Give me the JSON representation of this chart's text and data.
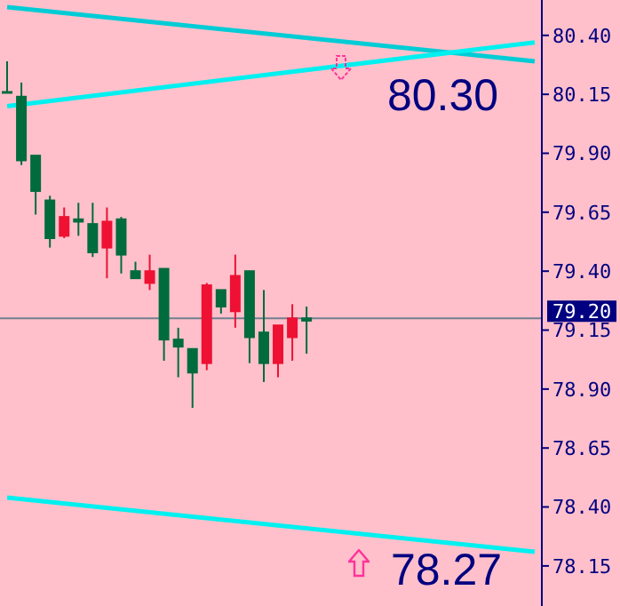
{
  "chart_data": {
    "type": "candlestick",
    "categories": [
      null,
      null,
      null,
      null,
      null,
      null,
      null,
      null,
      null,
      null,
      null,
      null,
      null,
      null,
      null,
      null,
      null,
      null,
      null,
      null,
      null,
      null,
      null,
      null,
      null,
      null,
      null,
      null,
      null,
      null,
      null,
      null,
      null,
      null,
      null,
      null,
      null,
      null
    ],
    "ohlc": [
      [
        80.16,
        80.29,
        80.16,
        80.16
      ],
      [
        80.14,
        80.2,
        79.85,
        79.87
      ],
      [
        79.89,
        79.89,
        79.64,
        79.74
      ],
      [
        79.7,
        79.72,
        79.5,
        79.54
      ],
      [
        79.55,
        79.67,
        79.54,
        79.63
      ],
      [
        79.62,
        79.69,
        79.55,
        79.61
      ],
      [
        79.6,
        79.69,
        79.46,
        79.48
      ],
      [
        79.5,
        79.67,
        79.37,
        79.61
      ],
      [
        79.62,
        79.63,
        79.39,
        79.47
      ],
      [
        79.4,
        79.44,
        79.37,
        79.37
      ],
      [
        79.35,
        79.47,
        79.32,
        79.4
      ],
      [
        79.41,
        79.41,
        79.02,
        79.11
      ],
      [
        79.11,
        79.16,
        78.95,
        79.08
      ],
      [
        79.07,
        79.07,
        78.82,
        78.97
      ],
      [
        79.01,
        79.35,
        78.98,
        79.34
      ],
      [
        79.32,
        79.32,
        79.22,
        79.25
      ],
      [
        79.23,
        79.47,
        79.16,
        79.38
      ],
      [
        79.4,
        79.4,
        79.01,
        79.12
      ],
      [
        79.14,
        79.32,
        78.93,
        79.01
      ],
      [
        79.01,
        79.17,
        78.95,
        79.17
      ],
      [
        79.12,
        79.26,
        79.02,
        79.2
      ],
      [
        79.2,
        79.25,
        79.05,
        79.19
      ],
      null,
      null,
      null,
      null,
      null,
      null,
      null,
      null,
      null,
      null,
      null,
      null,
      null,
      null,
      null,
      null
    ],
    "series": [
      {
        "type": "line",
        "color": "#00ccd6",
        "values": [
          80.52,
          null,
          null,
          null,
          null,
          null,
          null,
          null,
          null,
          null,
          null,
          null,
          null,
          null,
          null,
          null,
          null,
          null,
          null,
          null,
          null,
          null,
          null,
          null,
          null,
          null,
          null,
          null,
          null,
          null,
          null,
          null,
          null,
          null,
          null,
          null,
          null,
          80.29
        ]
      },
      {
        "type": "line",
        "color": "#00f0f0",
        "values": [
          80.1,
          null,
          null,
          null,
          null,
          null,
          null,
          null,
          null,
          null,
          null,
          null,
          null,
          null,
          null,
          null,
          null,
          null,
          null,
          null,
          null,
          null,
          null,
          null,
          null,
          null,
          null,
          null,
          null,
          null,
          null,
          null,
          null,
          null,
          null,
          null,
          null,
          80.37
        ]
      },
      {
        "type": "line",
        "color": "#00f0f0",
        "values": [
          78.44,
          null,
          null,
          null,
          null,
          null,
          null,
          null,
          null,
          null,
          null,
          null,
          null,
          null,
          null,
          null,
          null,
          null,
          null,
          null,
          null,
          null,
          null,
          null,
          null,
          null,
          null,
          null,
          null,
          null,
          null,
          null,
          null,
          null,
          null,
          null,
          null,
          78.21
        ]
      }
    ],
    "ylim": [
      77.98,
      80.55
    ],
    "yticks": [
      {
        "value": 80.4,
        "label": "80.40"
      },
      {
        "value": 80.15,
        "label": "80.15"
      },
      {
        "value": 79.9,
        "label": "79.90"
      },
      {
        "value": 79.65,
        "label": "79.65"
      },
      {
        "value": 79.4,
        "label": "79.40"
      },
      {
        "value": 79.15,
        "label": "79.15"
      },
      {
        "value": 78.9,
        "label": "78.90"
      },
      {
        "value": 78.65,
        "label": "78.65"
      },
      {
        "value": 78.4,
        "label": "78.40"
      },
      {
        "value": 78.15,
        "label": "78.15"
      }
    ],
    "tick_labels": "y",
    "grid": false,
    "marker": "none",
    "line_style": "solid",
    "ref_lines": [
      {
        "axis": "y",
        "value": 79.2,
        "label": "79.20",
        "color": "#708090"
      }
    ],
    "annotations": [
      "80.30",
      "78.27"
    ]
  }
}
